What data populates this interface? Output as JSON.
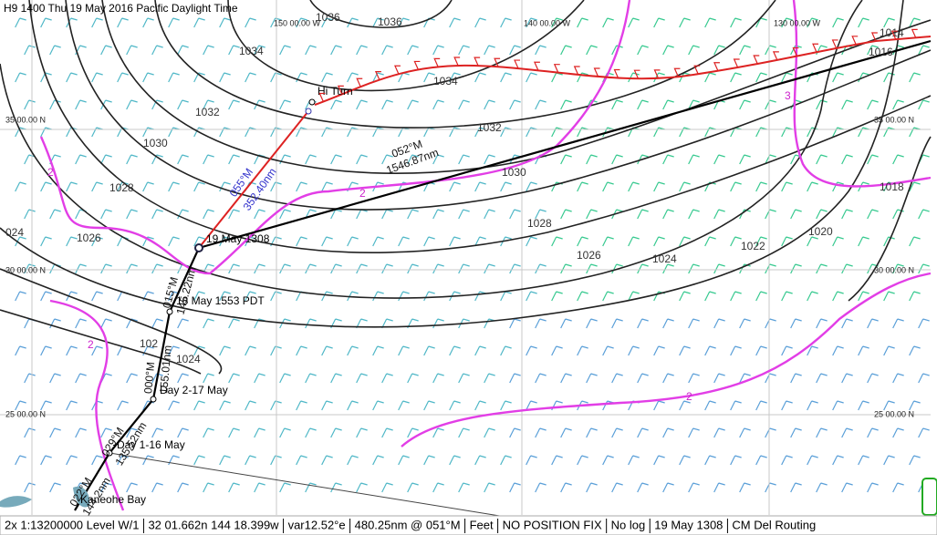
{
  "header": {
    "title": "H9 1400 Thu 19 May 2016 Pacific Daylight Time"
  },
  "grid_labels": {
    "longitudes": [
      "150 00.00 W",
      "140 00.00 W",
      "130 00.00 W"
    ],
    "latitudes": [
      "35 00.00 N",
      "30 00.00 N",
      "25 00.00 N"
    ]
  },
  "isobar_labels": [
    "1036",
    "1036",
    "1034",
    "1034",
    "1032",
    "1032",
    "1030",
    "1030",
    "1028",
    "1028",
    "1026",
    "1026",
    "1024",
    "1022",
    "1020",
    "1018",
    "1016",
    "1014",
    "024",
    "1024",
    "102"
  ],
  "wave_labels": [
    "2",
    "2",
    "2",
    "3",
    "2"
  ],
  "route_labels": [
    "Hi Turn",
    "19 May 1308",
    "18 May 1553 PDT",
    "Day 2-17 May",
    "Day 1-16 May",
    "Kaneohe Bay"
  ],
  "leg_labels": [
    "052°M",
    "1546.87nm",
    "055°M",
    "352.40nm",
    "015°M",
    "145.22nm",
    "000°M",
    "155.01nm",
    "029°M",
    "135.52nm",
    "022°M",
    "144.2nm"
  ],
  "status_bar": [
    "2x 1:13200000 Level W/1",
    "32 01.662n 144 18.399w",
    "var12.52°e",
    "480.25nm @ 051°M",
    "Feet",
    "NO POSITION FIX",
    "No log",
    "19 May 1308",
    "CM Del Routing"
  ]
}
